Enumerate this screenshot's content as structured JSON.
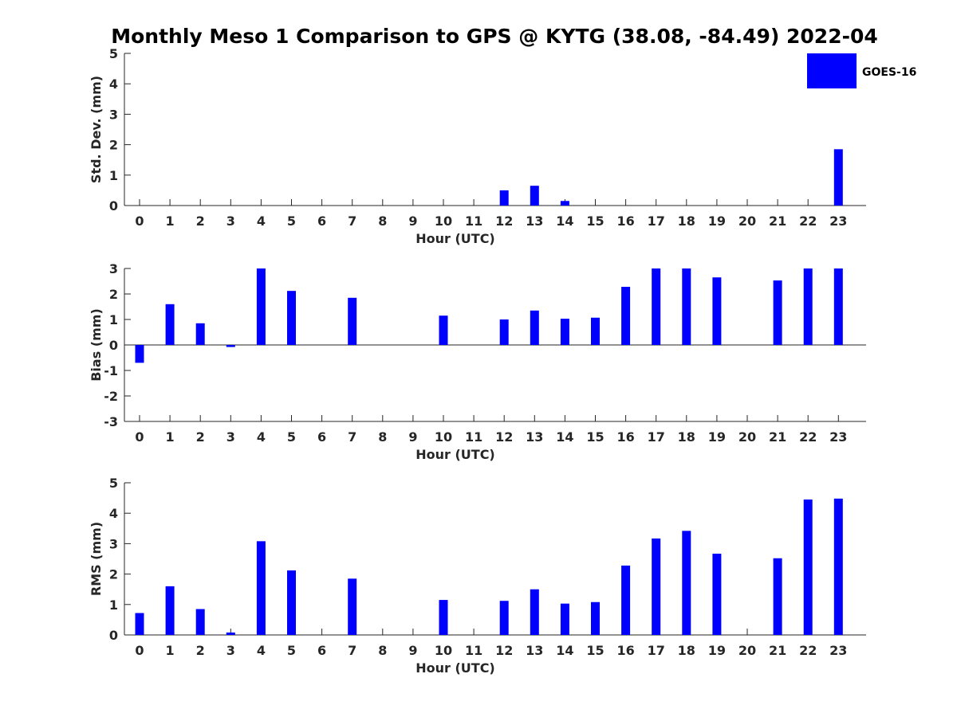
{
  "title": "Monthly Meso 1 Comparison to GPS @ KYTG (38.08, -84.49) 2022-04",
  "legend": {
    "label": "GOES-16",
    "color": "#0000ff"
  },
  "chart_data": [
    {
      "type": "bar",
      "ylabel": "Std. Dev. (mm)",
      "xlabel": "Hour (UTC)",
      "ylim": [
        0,
        5
      ],
      "yticks": [
        0,
        1,
        2,
        3,
        4,
        5
      ],
      "categories": [
        "0",
        "1",
        "2",
        "3",
        "4",
        "5",
        "6",
        "7",
        "8",
        "9",
        "10",
        "11",
        "12",
        "13",
        "14",
        "15",
        "16",
        "17",
        "18",
        "19",
        "20",
        "21",
        "22",
        "23"
      ],
      "series": [
        {
          "name": "GOES-16",
          "color": "#0000ff",
          "values": [
            null,
            null,
            null,
            null,
            null,
            null,
            null,
            null,
            null,
            null,
            null,
            null,
            0.5,
            0.65,
            0.15,
            null,
            null,
            null,
            null,
            null,
            null,
            null,
            null,
            1.85
          ]
        }
      ],
      "legend_position": "top-right"
    },
    {
      "type": "bar",
      "ylabel": "Bias (mm)",
      "xlabel": "Hour (UTC)",
      "ylim": [
        -3,
        3
      ],
      "yticks": [
        -3,
        -2,
        -1,
        0,
        1,
        2,
        3
      ],
      "zero_line": true,
      "categories": [
        "0",
        "1",
        "2",
        "3",
        "4",
        "5",
        "6",
        "7",
        "8",
        "9",
        "10",
        "11",
        "12",
        "13",
        "14",
        "15",
        "16",
        "17",
        "18",
        "19",
        "20",
        "21",
        "22",
        "23"
      ],
      "series": [
        {
          "name": "GOES-16",
          "color": "#0000ff",
          "values": [
            -0.7,
            1.6,
            0.85,
            -0.08,
            3.0,
            2.12,
            null,
            1.85,
            null,
            null,
            1.15,
            null,
            1.0,
            1.35,
            1.03,
            1.07,
            2.28,
            3.0,
            3.0,
            2.65,
            null,
            2.53,
            3.0,
            3.0
          ]
        }
      ]
    },
    {
      "type": "bar",
      "ylabel": "RMS (mm)",
      "xlabel": "Hour (UTC)",
      "ylim": [
        0,
        5
      ],
      "yticks": [
        0,
        1,
        2,
        3,
        4,
        5
      ],
      "categories": [
        "0",
        "1",
        "2",
        "3",
        "4",
        "5",
        "6",
        "7",
        "8",
        "9",
        "10",
        "11",
        "12",
        "13",
        "14",
        "15",
        "16",
        "17",
        "18",
        "19",
        "20",
        "21",
        "22",
        "23"
      ],
      "series": [
        {
          "name": "GOES-16",
          "color": "#0000ff",
          "values": [
            0.72,
            1.6,
            0.85,
            0.08,
            3.08,
            2.12,
            null,
            1.85,
            null,
            null,
            1.15,
            null,
            1.12,
            1.5,
            1.03,
            1.08,
            2.28,
            3.17,
            3.42,
            2.67,
            null,
            2.52,
            4.45,
            4.48
          ]
        }
      ]
    }
  ]
}
